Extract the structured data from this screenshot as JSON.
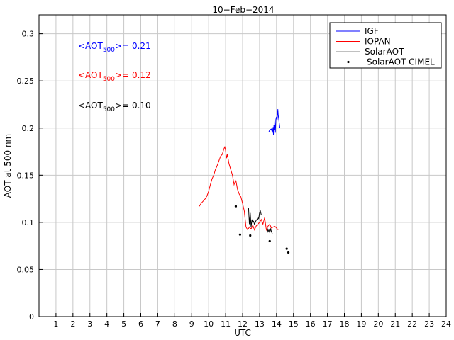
{
  "chart_data": {
    "type": "line",
    "title": "10−Feb−2014",
    "xlabel": "UTC",
    "ylabel": "AOT at 500 nm",
    "xlim": [
      0,
      24
    ],
    "ylim": [
      0,
      0.32
    ],
    "xticks": [
      "1",
      "2",
      "3",
      "4",
      "5",
      "6",
      "7",
      "8",
      "9",
      "10",
      "11",
      "12",
      "13",
      "14",
      "15",
      "16",
      "17",
      "18",
      "19",
      "20",
      "21",
      "22",
      "23",
      "24"
    ],
    "yticks": [
      "0",
      "0.05",
      "0.1",
      "0.15",
      "0.2",
      "0.25",
      "0.3"
    ],
    "ytick_values": [
      0,
      0.05,
      0.1,
      0.15,
      0.2,
      0.25,
      0.3
    ],
    "grid": true,
    "legend_position": "top-right",
    "annotations": [
      {
        "prefix": "<AOT",
        "sub": "500",
        "suffix": ">= 0.21",
        "color": "#0000ff"
      },
      {
        "prefix": "<AOT",
        "sub": "500",
        "suffix": ">= 0.12",
        "color": "#ff0000"
      },
      {
        "prefix": "<AOT",
        "sub": "500",
        "suffix": ">= 0.10",
        "color": "#000000"
      }
    ],
    "series": [
      {
        "name": "IGF",
        "style": "line",
        "color": "#0000ff",
        "x": [
          13.55,
          13.6,
          13.7,
          13.75,
          13.8,
          13.82,
          13.85,
          13.88,
          13.9,
          13.93,
          13.96,
          14.0,
          14.03,
          14.06,
          14.08,
          14.1,
          14.13,
          14.16,
          14.2
        ],
        "y": [
          0.196,
          0.198,
          0.199,
          0.195,
          0.201,
          0.193,
          0.203,
          0.198,
          0.207,
          0.195,
          0.209,
          0.212,
          0.208,
          0.215,
          0.22,
          0.214,
          0.21,
          0.205,
          0.2
        ]
      },
      {
        "name": "IOPAN",
        "style": "line",
        "color": "#ff0000",
        "x": [
          9.45,
          9.55,
          9.7,
          9.8,
          9.9,
          10.0,
          10.1,
          10.2,
          10.3,
          10.4,
          10.5,
          10.6,
          10.7,
          10.8,
          10.9,
          10.95,
          11.0,
          11.05,
          11.1,
          11.2,
          11.3,
          11.4,
          11.5,
          11.6,
          11.7,
          11.8,
          11.9,
          12.0,
          12.1,
          12.2,
          12.3,
          12.4,
          12.5,
          12.6,
          12.7,
          12.8,
          12.9,
          13.0,
          13.1,
          13.2,
          13.3,
          13.4,
          13.5,
          13.6,
          13.7,
          13.8,
          13.9,
          14.0,
          14.1
        ],
        "y": [
          0.117,
          0.12,
          0.123,
          0.125,
          0.128,
          0.133,
          0.14,
          0.146,
          0.15,
          0.156,
          0.16,
          0.165,
          0.17,
          0.172,
          0.178,
          0.18,
          0.176,
          0.168,
          0.172,
          0.162,
          0.156,
          0.15,
          0.14,
          0.145,
          0.135,
          0.13,
          0.127,
          0.12,
          0.112,
          0.095,
          0.092,
          0.095,
          0.093,
          0.097,
          0.092,
          0.096,
          0.098,
          0.1,
          0.103,
          0.098,
          0.105,
          0.092,
          0.096,
          0.098,
          0.094,
          0.095,
          0.096,
          0.094,
          0.092
        ]
      },
      {
        "name": "SolarAOT",
        "style": "line",
        "color": "#000000",
        "x": [
          12.35,
          12.4,
          12.45,
          12.5,
          12.55,
          12.6,
          12.65,
          12.7,
          12.75,
          12.8,
          12.85,
          12.9,
          12.95,
          13.0,
          13.05,
          13.1
        ],
        "y": [
          0.115,
          0.098,
          0.11,
          0.095,
          0.103,
          0.1,
          0.101,
          0.098,
          0.1,
          0.102,
          0.103,
          0.105,
          0.104,
          0.11,
          0.112,
          0.108
        ]
      },
      {
        "name": "SolarAOT",
        "style": "line",
        "color": "#000000",
        "x": [
          13.45,
          13.5,
          13.55,
          13.6,
          13.65,
          13.7,
          13.75
        ],
        "y": [
          0.094,
          0.09,
          0.092,
          0.089,
          0.093,
          0.09,
          0.088
        ]
      },
      {
        "name": "SolarAOT CIMEL",
        "style": "points",
        "color": "#000000",
        "x": [
          11.6,
          11.85,
          12.45,
          13.6,
          14.6,
          14.7
        ],
        "y": [
          0.117,
          0.087,
          0.086,
          0.08,
          0.072,
          0.068
        ]
      }
    ],
    "legend": [
      {
        "label": "IGF",
        "color": "#0000ff",
        "style": "line"
      },
      {
        "label": "IOPAN",
        "color": "#ff0000",
        "style": "line"
      },
      {
        "label": "SolarAOT",
        "color": "#808080",
        "style": "line"
      },
      {
        "label": "SolarAOT CIMEL",
        "color": "#000000",
        "style": "point"
      }
    ]
  }
}
